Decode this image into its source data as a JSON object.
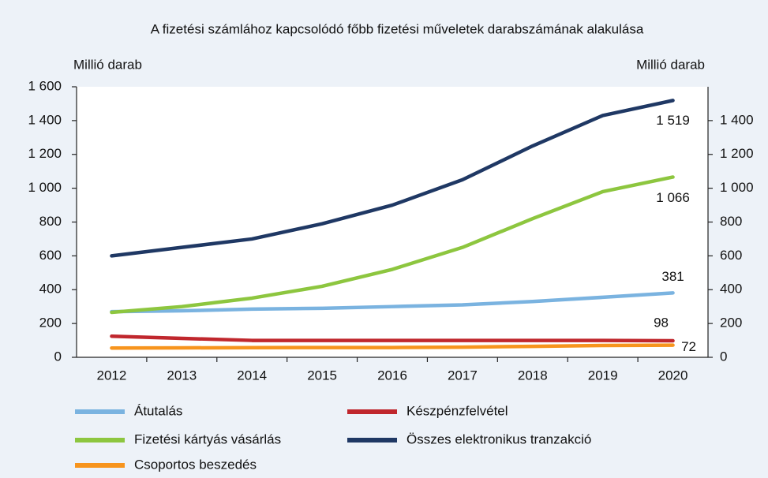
{
  "chart_data": {
    "type": "line",
    "title": "A fizetési számlához kapcsolódó főbb fizetési műveletek darabszámának alakulása",
    "ylabel": "Millió darab",
    "y2label": "Millió darab",
    "categories": [
      "2012",
      "2013",
      "2014",
      "2015",
      "2016",
      "2017",
      "2018",
      "2019",
      "2020"
    ],
    "series": [
      {
        "name": "Átutalás",
        "color": "#7ab3e0",
        "values": [
          270,
          275,
          285,
          290,
          300,
          310,
          330,
          355,
          381
        ],
        "value_labels": [
          null,
          null,
          null,
          null,
          null,
          null,
          null,
          null,
          "381"
        ]
      },
      {
        "name": "Készpénzfelvétel",
        "color": "#c0272d",
        "values": [
          125,
          112,
          100,
          100,
          100,
          100,
          100,
          100,
          98
        ],
        "value_labels": [
          null,
          null,
          null,
          null,
          null,
          null,
          null,
          null,
          "98"
        ]
      },
      {
        "name": "Fizetési kártyás vásárlás",
        "color": "#8dc63f",
        "values": [
          266,
          300,
          350,
          420,
          520,
          650,
          820,
          980,
          1066
        ],
        "value_labels": [
          null,
          null,
          null,
          null,
          null,
          null,
          null,
          null,
          "1 066"
        ]
      },
      {
        "name": "Összes elektronikus tranzakció",
        "color": "#1f3864",
        "values": [
          600,
          650,
          700,
          790,
          900,
          1050,
          1250,
          1430,
          1519
        ],
        "value_labels": [
          null,
          null,
          null,
          null,
          null,
          null,
          null,
          null,
          "1 519"
        ]
      },
      {
        "name": "Csoportos beszedés",
        "color": "#f7941d",
        "values": [
          55,
          56,
          57,
          58,
          58,
          60,
          65,
          70,
          72
        ],
        "value_labels": [
          null,
          null,
          null,
          null,
          null,
          null,
          null,
          null,
          "72"
        ]
      }
    ],
    "ylim": [
      0,
      1600
    ],
    "yticks": [
      0,
      200,
      400,
      600,
      800,
      {
        "value": 1000,
        "label": "1 000"
      },
      {
        "value": 1200,
        "label": "1 200"
      },
      {
        "value": 1400,
        "label": "1 400"
      },
      {
        "value": 1600,
        "label": "1 600"
      }
    ],
    "y2lim": [
      0,
      1600
    ],
    "y2ticks": [
      0,
      200,
      400,
      600,
      800,
      {
        "value": 1000,
        "label": "1 000"
      },
      {
        "value": 1200,
        "label": "1 200"
      },
      {
        "value": 1400,
        "label": "1 400"
      }
    ],
    "grid": false
  }
}
